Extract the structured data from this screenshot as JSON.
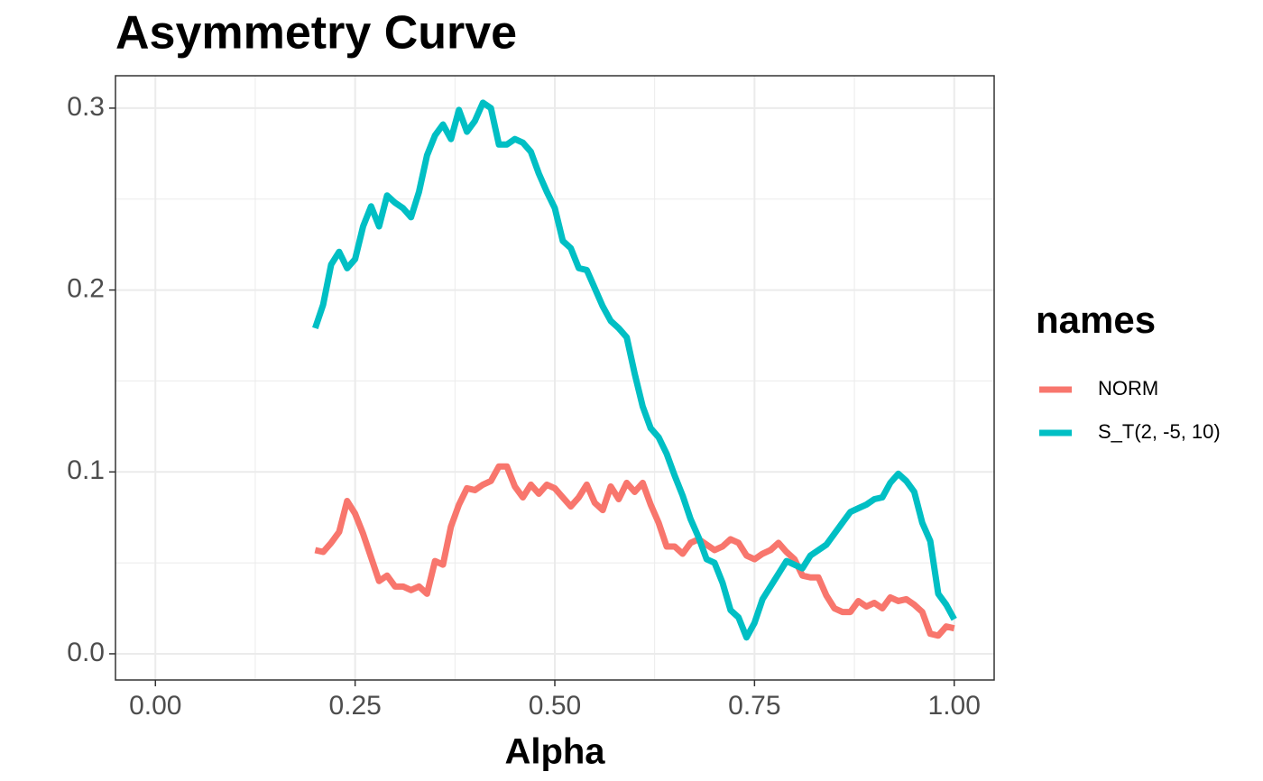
{
  "chart_data": {
    "type": "line",
    "title": "Asymmetry Curve",
    "xlabel": "Alpha",
    "legend_title": "names",
    "legend": "right",
    "grid": true,
    "x": [
      0.2,
      0.21,
      0.22,
      0.23,
      0.24,
      0.25,
      0.26,
      0.27,
      0.28,
      0.29,
      0.3,
      0.31,
      0.32,
      0.33,
      0.34,
      0.35,
      0.36,
      0.37,
      0.38,
      0.39,
      0.4,
      0.41,
      0.42,
      0.43,
      0.44,
      0.45,
      0.46,
      0.47,
      0.48,
      0.49,
      0.5,
      0.51,
      0.52,
      0.53,
      0.54,
      0.55,
      0.56,
      0.57,
      0.58,
      0.59,
      0.6,
      0.61,
      0.62,
      0.63,
      0.64,
      0.65,
      0.66,
      0.67,
      0.68,
      0.69,
      0.7,
      0.71,
      0.72,
      0.73,
      0.74,
      0.75,
      0.76,
      0.77,
      0.78,
      0.79,
      0.8,
      0.81,
      0.82,
      0.83,
      0.84,
      0.85,
      0.86,
      0.87,
      0.88,
      0.89,
      0.9,
      0.91,
      0.92,
      0.93,
      0.94,
      0.95,
      0.96,
      0.97,
      0.98,
      0.99,
      1.0
    ],
    "series": [
      {
        "name": "NORM",
        "color": "#F8766D",
        "values": [
          0.057,
          0.056,
          0.061,
          0.067,
          0.084,
          0.077,
          0.066,
          0.053,
          0.04,
          0.043,
          0.037,
          0.037,
          0.035,
          0.037,
          0.033,
          0.051,
          0.049,
          0.07,
          0.082,
          0.091,
          0.09,
          0.093,
          0.095,
          0.103,
          0.103,
          0.092,
          0.086,
          0.093,
          0.088,
          0.093,
          0.091,
          0.086,
          0.081,
          0.086,
          0.093,
          0.083,
          0.079,
          0.092,
          0.085,
          0.094,
          0.089,
          0.094,
          0.082,
          0.072,
          0.059,
          0.059,
          0.055,
          0.061,
          0.063,
          0.06,
          0.057,
          0.059,
          0.063,
          0.061,
          0.054,
          0.052,
          0.055,
          0.057,
          0.061,
          0.056,
          0.052,
          0.043,
          0.042,
          0.042,
          0.032,
          0.025,
          0.023,
          0.023,
          0.029,
          0.026,
          0.028,
          0.025,
          0.031,
          0.029,
          0.03,
          0.027,
          0.023,
          0.011,
          0.01,
          0.015,
          0.014
        ]
      },
      {
        "name": "S_T(2, -5, 10)",
        "color": "#00BFC4",
        "values": [
          0.179,
          0.192,
          0.214,
          0.221,
          0.212,
          0.217,
          0.235,
          0.246,
          0.235,
          0.252,
          0.248,
          0.245,
          0.24,
          0.254,
          0.274,
          0.285,
          0.291,
          0.283,
          0.299,
          0.287,
          0.293,
          0.303,
          0.3,
          0.28,
          0.28,
          0.283,
          0.281,
          0.276,
          0.264,
          0.254,
          0.245,
          0.227,
          0.223,
          0.212,
          0.211,
          0.201,
          0.191,
          0.183,
          0.179,
          0.174,
          0.154,
          0.136,
          0.124,
          0.119,
          0.11,
          0.098,
          0.087,
          0.074,
          0.064,
          0.052,
          0.05,
          0.039,
          0.024,
          0.02,
          0.009,
          0.017,
          0.03,
          0.037,
          0.044,
          0.051,
          0.049,
          0.047,
          0.054,
          0.057,
          0.06,
          0.066,
          0.072,
          0.078,
          0.08,
          0.082,
          0.085,
          0.086,
          0.094,
          0.099,
          0.095,
          0.089,
          0.072,
          0.062,
          0.033,
          0.027,
          0.019
        ]
      }
    ],
    "xlim": [
      -0.05,
      1.05
    ],
    "xticks": [
      {
        "value": 0,
        "label": "0.00"
      },
      0.25,
      {
        "value": 0.5,
        "label": "0.50"
      },
      0.75,
      {
        "value": 1,
        "label": "1.00"
      }
    ],
    "ylim": [
      -0.0144,
      0.3178
    ],
    "yticks": [
      {
        "value": 0,
        "label": "0.0"
      },
      0.1,
      0.2,
      0.3
    ]
  }
}
